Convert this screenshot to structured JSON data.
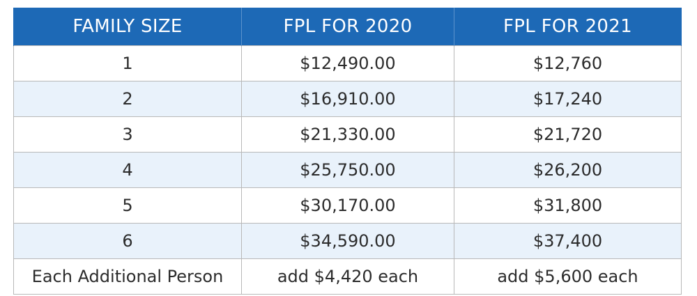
{
  "table": {
    "headers": [
      "FAMILY SIZE",
      "FPL FOR 2020",
      "FPL FOR 2021"
    ],
    "rows": [
      [
        "1",
        "$12,490.00",
        "$12,760"
      ],
      [
        "2",
        "$16,910.00",
        "$17,240"
      ],
      [
        "3",
        "$21,330.00",
        "$21,720"
      ],
      [
        "4",
        "$25,750.00",
        "$26,200"
      ],
      [
        "5",
        "$30,170.00",
        "$31,800"
      ],
      [
        "6",
        "$34,590.00",
        "$37,400"
      ],
      [
        "Each Additional Person",
        "add $4,420 each",
        "add $5,600 each"
      ]
    ],
    "header_color": "#1d69b6",
    "stripe_color": "#e9f2fb"
  }
}
